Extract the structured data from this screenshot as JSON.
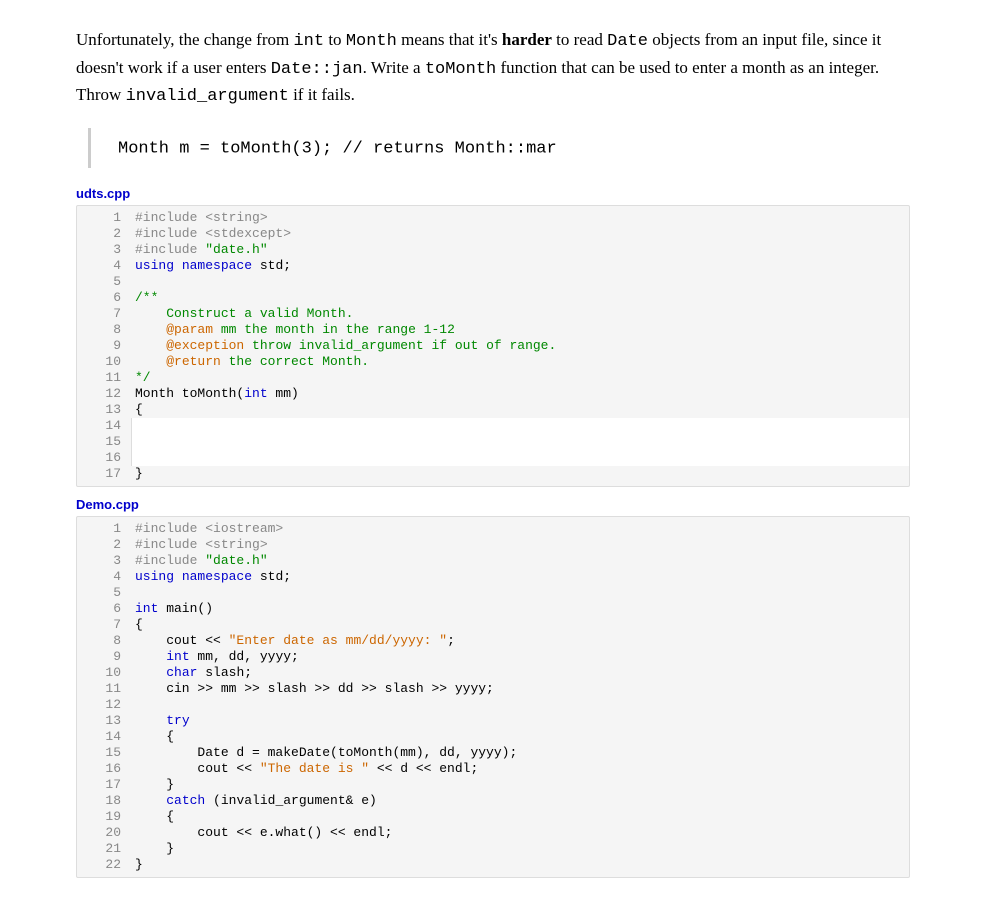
{
  "prose": {
    "seg1": "Unfortunately, the change from ",
    "mono1": "int",
    "seg2": " to ",
    "mono2": "Month",
    "seg3": " means that it's ",
    "bold1": "harder",
    "seg4": " to read ",
    "mono3": "Date",
    "seg5": " objects from an input file, since it doesn't work if a user enters ",
    "mono4": "Date::jan",
    "seg6": ". Write a ",
    "mono5": "toMonth",
    "seg7": " function that can be used to enter a month as an integer. Throw ",
    "mono6": "invalid_argument",
    "seg8": " if it fails."
  },
  "example": {
    "code_seg1": "Month m = toMonth(3); ",
    "code_seg2": "// returns Month::mar"
  },
  "file1": {
    "name": "udts.cpp",
    "lines": [
      {
        "n": "1",
        "html": "<span class='pp'>#include &lt;string&gt;</span>"
      },
      {
        "n": "2",
        "html": "<span class='pp'>#include &lt;stdexcept&gt;</span>"
      },
      {
        "n": "3",
        "html": "<span class='pp'>#include </span><span class='strg'>\"date.h\"</span>"
      },
      {
        "n": "4",
        "html": "<span class='kw'>using</span> <span class='kw'>namespace</span> std;"
      },
      {
        "n": "5",
        "html": ""
      },
      {
        "n": "6",
        "html": "<span class='cmt'>/**</span>"
      },
      {
        "n": "7",
        "html": "<span class='cmt'>    Construct a valid Month.</span>"
      },
      {
        "n": "8",
        "html": "<span class='cmt'>    </span><span class='doc'>@param</span><span class='cmt'> mm the month in the range 1-12</span>"
      },
      {
        "n": "9",
        "html": "<span class='cmt'>    </span><span class='doc'>@exception</span><span class='cmt'> throw invalid_argument if out of range.</span>"
      },
      {
        "n": "10",
        "html": "<span class='cmt'>    </span><span class='doc'>@return</span><span class='cmt'> the correct Month.</span>"
      },
      {
        "n": "11",
        "html": "<span class='cmt'>*/</span>"
      },
      {
        "n": "12",
        "html": "Month toMonth(<span class='kw'>int</span> mm)"
      },
      {
        "n": "13",
        "html": "{"
      },
      {
        "n": "14",
        "html": "",
        "editable": true
      },
      {
        "n": "15",
        "html": "",
        "editable": true
      },
      {
        "n": "16",
        "html": "",
        "editable": true
      },
      {
        "n": "17",
        "html": "}"
      }
    ]
  },
  "file2": {
    "name": "Demo.cpp",
    "lines": [
      {
        "n": "1",
        "html": "<span class='pp'>#include &lt;iostream&gt;</span>"
      },
      {
        "n": "2",
        "html": "<span class='pp'>#include &lt;string&gt;</span>"
      },
      {
        "n": "3",
        "html": "<span class='pp'>#include </span><span class='strg'>\"date.h\"</span>"
      },
      {
        "n": "4",
        "html": "<span class='kw'>using</span> <span class='kw'>namespace</span> std;"
      },
      {
        "n": "5",
        "html": ""
      },
      {
        "n": "6",
        "html": "<span class='kw'>int</span> main()"
      },
      {
        "n": "7",
        "html": "{"
      },
      {
        "n": "8",
        "html": "    cout &lt;&lt; <span class='str'>\"Enter date as mm/dd/yyyy: \"</span>;"
      },
      {
        "n": "9",
        "html": "    <span class='kw'>int</span> mm, dd, yyyy;"
      },
      {
        "n": "10",
        "html": "    <span class='kw'>char</span> slash;"
      },
      {
        "n": "11",
        "html": "    cin &gt;&gt; mm &gt;&gt; slash &gt;&gt; dd &gt;&gt; slash &gt;&gt; yyyy;"
      },
      {
        "n": "12",
        "html": ""
      },
      {
        "n": "13",
        "html": "    <span class='kw'>try</span>"
      },
      {
        "n": "14",
        "html": "    {"
      },
      {
        "n": "15",
        "html": "        Date d = makeDate(toMonth(mm), dd, yyyy);"
      },
      {
        "n": "16",
        "html": "        cout &lt;&lt; <span class='str'>\"The date is \"</span> &lt;&lt; d &lt;&lt; endl;"
      },
      {
        "n": "17",
        "html": "    }"
      },
      {
        "n": "18",
        "html": "    <span class='kw'>catch</span> (invalid_argument&amp; e)"
      },
      {
        "n": "19",
        "html": "    {"
      },
      {
        "n": "20",
        "html": "        cout &lt;&lt; e.what() &lt;&lt; endl;"
      },
      {
        "n": "21",
        "html": "    }"
      },
      {
        "n": "22",
        "html": "}"
      }
    ]
  },
  "colors": {
    "link": "#0000cc",
    "code_bg": "#f5f5f5",
    "code_border": "#dddddd",
    "gutter_text": "#888888",
    "keyword": "#0000cc",
    "string": "#cc6600",
    "comment": "#008800",
    "string_green": "#008800"
  }
}
